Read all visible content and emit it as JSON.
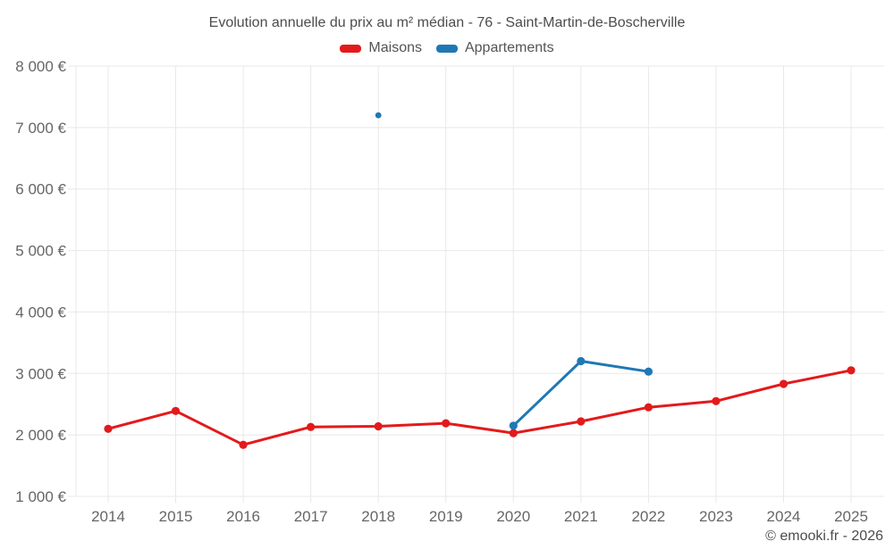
{
  "title": "Evolution annuelle du prix au m² médian - 76 - Saint-Martin-de-Boscherville",
  "legend": {
    "items": [
      {
        "label": "Maisons",
        "color": "#e31a1c"
      },
      {
        "label": "Appartements",
        "color": "#1f78b4"
      }
    ]
  },
  "footer": {
    "credit": "© emooki.fr - 2026"
  },
  "colors": {
    "background": "#ffffff",
    "grid": "#e8e8e8",
    "tick_text": "#666666",
    "title_text": "#4c4c4c",
    "legend_text": "#545454",
    "footer_text": "#4c4c4c",
    "maisons": "#e31a1c",
    "appartements": "#1f78b4"
  },
  "chart_data": {
    "type": "line",
    "title": "Evolution annuelle du prix au m² médian - 76 - Saint-Martin-de-Boscherville",
    "x": [
      "2014",
      "2015",
      "2016",
      "2017",
      "2018",
      "2019",
      "2020",
      "2021",
      "2022",
      "2023",
      "2024",
      "2025"
    ],
    "series": [
      {
        "name": "Maisons",
        "color": "#e31a1c",
        "values": [
          2100,
          2390,
          1840,
          2130,
          2140,
          2190,
          2030,
          2220,
          2450,
          2550,
          2830,
          3050
        ]
      },
      {
        "name": "Appartements",
        "color": "#1f78b4",
        "values": [
          null,
          null,
          null,
          null,
          7200,
          null,
          2150,
          3200,
          3030,
          null,
          null,
          null
        ]
      }
    ],
    "ylim": [
      1000,
      8000
    ],
    "y_ticks": [
      {
        "value": 1000,
        "label": "1 000 €"
      },
      {
        "value": 2000,
        "label": "2 000 €"
      },
      {
        "value": 3000,
        "label": "3 000 €"
      },
      {
        "value": 4000,
        "label": "4 000 €"
      },
      {
        "value": 5000,
        "label": "5 000 €"
      },
      {
        "value": 6000,
        "label": "6 000 €"
      },
      {
        "value": 7000,
        "label": "7 000 €"
      },
      {
        "value": 8000,
        "label": "8 000 €"
      }
    ],
    "grid": true,
    "legend_position": "top",
    "xlabel": "",
    "ylabel": ""
  }
}
